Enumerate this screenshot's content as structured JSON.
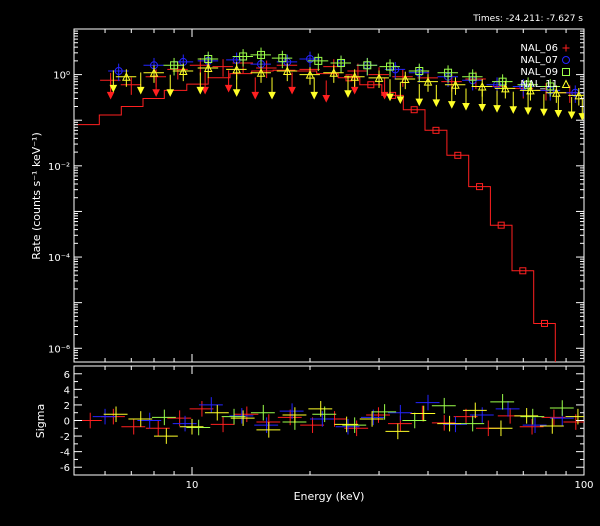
{
  "header": {
    "times_label": "Times: -24.211: -7.627 s"
  },
  "colors": {
    "NAL_06": "#ff2020",
    "NAL_07": "#2424ff",
    "NAL_09": "#9cff4a",
    "NAL_11": "#ffff28",
    "frame": "#ffffff",
    "background": "#000000"
  },
  "chart_data": [
    {
      "type": "scatter",
      "panel": "spectrum",
      "xlabel": "Energy (keV)",
      "ylabel": "Rate (counts s⁻¹ keV⁻¹)",
      "x_scale": "log",
      "y_scale": "log",
      "xlim": [
        5,
        100
      ],
      "ylim": [
        5e-07,
        10
      ],
      "x_ticks": [
        10,
        100
      ],
      "x_tick_labels": [
        "10",
        "100"
      ],
      "y_ticks": [
        1,
        0.01,
        0.0001,
        1e-06
      ],
      "y_tick_labels": [
        "10⁰",
        "10⁻²",
        "10⁻⁴",
        "10⁻⁶"
      ],
      "legend_position": "top-right",
      "series": [
        {
          "name": "NAL_06",
          "marker": "plus",
          "model_x": [
            5.1,
            5.8,
            6.6,
            7.5,
            8.5,
            9.7,
            11,
            12.5,
            14.2,
            16.1,
            18.3,
            20.8,
            23.6,
            26.8,
            30.5,
            34.6,
            39.3,
            44.7,
            50.8,
            57.7,
            65.5,
            74.4,
            84.5,
            96,
            100
          ],
          "model_y": [
            0.08,
            0.13,
            0.2,
            0.3,
            0.45,
            0.62,
            0.85,
            1.05,
            1.2,
            1.25,
            1.2,
            1.05,
            0.85,
            0.6,
            0.35,
            0.17,
            0.06,
            0.017,
            0.0035,
            0.0005,
            5e-05,
            3.5e-06,
            2e-07,
            8e-09,
            3e-09
          ],
          "data": [
            [
              6.2,
              0.75
            ],
            [
              7.0,
              0.6
            ],
            [
              8.1,
              0.9
            ],
            [
              9.2,
              1.3
            ],
            [
              10.5,
              1.6
            ],
            [
              12.0,
              1.5
            ],
            [
              13.5,
              1.8
            ],
            [
              15.5,
              1.4
            ],
            [
              17.5,
              1.6
            ],
            [
              20.0,
              1.3
            ],
            [
              23.0,
              1.5
            ],
            [
              26.5,
              1.2
            ],
            [
              30.0,
              1.0
            ],
            [
              34.5,
              0.9
            ],
            [
              40.0,
              0.85
            ],
            [
              46.0,
              0.7
            ],
            [
              53.0,
              0.8
            ],
            [
              60.0,
              0.55
            ],
            [
              70.0,
              0.5
            ],
            [
              80.0,
              0.45
            ],
            [
              92.0,
              0.4
            ]
          ],
          "upper_limits": [
            [
              6.2,
              0.35
            ],
            [
              8.1,
              0.4
            ],
            [
              10.8,
              0.45
            ],
            [
              12.4,
              0.5
            ],
            [
              14.5,
              0.35
            ],
            [
              18.0,
              0.45
            ],
            [
              22.0,
              0.3
            ],
            [
              26.0,
              0.45
            ],
            [
              31.0,
              0.35
            ]
          ]
        },
        {
          "name": "NAL_07",
          "marker": "circle",
          "data": [
            [
              6.5,
              1.2
            ],
            [
              8.0,
              1.6
            ],
            [
              9.5,
              1.9
            ],
            [
              11.0,
              2.0
            ],
            [
              13.0,
              2.1
            ],
            [
              15.0,
              1.7
            ],
            [
              17.5,
              1.9
            ],
            [
              20.0,
              2.2
            ],
            [
              24.0,
              1.8
            ],
            [
              28.0,
              1.6
            ],
            [
              33.0,
              1.3
            ],
            [
              38.0,
              1.1
            ],
            [
              45.0,
              0.9
            ],
            [
              52.0,
              0.75
            ],
            [
              60.0,
              0.6
            ],
            [
              70.0,
              0.55
            ],
            [
              82.0,
              0.45
            ],
            [
              95.0,
              0.4
            ]
          ]
        },
        {
          "name": "NAL_09",
          "marker": "square",
          "data": [
            [
              9.0,
              1.6
            ],
            [
              11.0,
              2.2
            ],
            [
              13.5,
              2.5
            ],
            [
              15.0,
              2.7
            ],
            [
              17.0,
              2.3
            ],
            [
              21.0,
              2.0
            ],
            [
              24.0,
              1.8
            ],
            [
              28.0,
              1.6
            ],
            [
              32.0,
              1.5
            ],
            [
              38.0,
              1.2
            ],
            [
              45.0,
              1.1
            ],
            [
              52.0,
              0.9
            ],
            [
              62.0,
              0.7
            ],
            [
              72.0,
              0.6
            ],
            [
              82.0,
              0.55
            ]
          ]
        },
        {
          "name": "NAL_11",
          "marker": "triangle",
          "data": [
            [
              6.8,
              0.9
            ],
            [
              8.0,
              1.1
            ],
            [
              9.5,
              1.2
            ],
            [
              11.0,
              1.4
            ],
            [
              13.0,
              1.3
            ],
            [
              15.0,
              1.1
            ],
            [
              17.5,
              1.2
            ],
            [
              20.0,
              1.0
            ],
            [
              23.0,
              1.1
            ],
            [
              26.0,
              0.9
            ],
            [
              30.0,
              0.85
            ],
            [
              35.0,
              0.8
            ],
            [
              40.0,
              0.7
            ],
            [
              47.0,
              0.6
            ],
            [
              55.0,
              0.55
            ],
            [
              63.0,
              0.5
            ],
            [
              73.0,
              0.45
            ],
            [
              85.0,
              0.4
            ],
            [
              97.0,
              0.35
            ]
          ],
          "upper_limits": [
            [
              6.3,
              0.5
            ],
            [
              7.4,
              0.45
            ],
            [
              8.8,
              0.4
            ],
            [
              10.5,
              0.45
            ],
            [
              13.0,
              0.4
            ],
            [
              16.0,
              0.35
            ],
            [
              20.5,
              0.35
            ],
            [
              25.0,
              0.38
            ],
            [
              32.0,
              0.32
            ],
            [
              34.0,
              0.28
            ],
            [
              38.0,
              0.25
            ],
            [
              42.0,
              0.24
            ],
            [
              46.0,
              0.22
            ],
            [
              50.0,
              0.2
            ],
            [
              55.0,
              0.19
            ],
            [
              60.0,
              0.18
            ],
            [
              66.0,
              0.17
            ],
            [
              72.0,
              0.16
            ],
            [
              79.0,
              0.15
            ],
            [
              86.0,
              0.14
            ],
            [
              93.0,
              0.13
            ],
            [
              99.0,
              0.12
            ]
          ]
        }
      ]
    },
    {
      "type": "scatter",
      "panel": "residuals",
      "xlabel": "Energy (keV)",
      "ylabel": "Sigma",
      "x_scale": "log",
      "xlim": [
        5,
        100
      ],
      "ylim": [
        -7,
        7
      ],
      "y_ticks": [
        -6,
        -4,
        -2,
        0,
        2,
        4,
        6
      ],
      "y_tick_labels": [
        "-6",
        "-4",
        "-2",
        "0",
        "2",
        "4",
        "6"
      ],
      "series": [
        {
          "name": "NAL_06",
          "data": [
            [
              5.5,
              0.0
            ],
            [
              6.3,
              0.5
            ],
            [
              7.1,
              -0.8
            ],
            [
              8.2,
              -1.0
            ],
            [
              9.3,
              0.3
            ],
            [
              10.6,
              1.5
            ],
            [
              12.0,
              -0.5
            ],
            [
              13.8,
              0.8
            ],
            [
              15.7,
              -0.2
            ],
            [
              17.8,
              0.4
            ],
            [
              20.3,
              -0.6
            ],
            [
              23.1,
              0.2
            ],
            [
              26.3,
              -1.0
            ],
            [
              29.9,
              0.7
            ],
            [
              34.0,
              -0.4
            ],
            [
              38.7,
              0.9
            ],
            [
              44.0,
              -0.3
            ],
            [
              50.0,
              0.5
            ],
            [
              57.0,
              -1.0
            ],
            [
              64.8,
              0.6
            ],
            [
              73.7,
              -0.8
            ],
            [
              83.8,
              0.4
            ],
            [
              95.3,
              -0.2
            ]
          ]
        },
        {
          "name": "NAL_07",
          "data": [
            [
              6.0,
              0.5
            ],
            [
              7.8,
              0.0
            ],
            [
              9.6,
              -0.4
            ],
            [
              11.2,
              2.0
            ],
            [
              13.4,
              0.6
            ],
            [
              15.5,
              -0.6
            ],
            [
              18.0,
              1.2
            ],
            [
              21.5,
              0.2
            ],
            [
              25.0,
              -0.8
            ],
            [
              29.0,
              0.4
            ],
            [
              34.0,
              1.0
            ],
            [
              40.0,
              2.3
            ],
            [
              47.0,
              -0.5
            ],
            [
              55.0,
              0.7
            ],
            [
              64.0,
              1.5
            ],
            [
              75.0,
              -0.6
            ],
            [
              88.0,
              0.3
            ]
          ]
        },
        {
          "name": "NAL_09",
          "data": [
            [
              8.5,
              0.4
            ],
            [
              10.4,
              -0.9
            ],
            [
              12.8,
              0.5
            ],
            [
              15.2,
              1.0
            ],
            [
              18.3,
              -0.2
            ],
            [
              21.8,
              0.8
            ],
            [
              26.0,
              -0.6
            ],
            [
              31.0,
              1.1
            ],
            [
              37.0,
              0.0
            ],
            [
              44.0,
              1.9
            ],
            [
              52.0,
              -0.4
            ],
            [
              62.0,
              2.4
            ],
            [
              74.0,
              0.5
            ],
            [
              88.0,
              1.6
            ]
          ]
        },
        {
          "name": "NAL_11",
          "data": [
            [
              6.4,
              0.8
            ],
            [
              7.4,
              0.2
            ],
            [
              8.6,
              -2.0
            ],
            [
              10.0,
              -0.8
            ],
            [
              11.6,
              1.0
            ],
            [
              13.5,
              0.3
            ],
            [
              15.7,
              -1.2
            ],
            [
              18.3,
              0.7
            ],
            [
              21.3,
              1.5
            ],
            [
              24.8,
              -0.5
            ],
            [
              28.8,
              0.2
            ],
            [
              33.5,
              -1.4
            ],
            [
              39.0,
              0.9
            ],
            [
              45.4,
              -0.4
            ],
            [
              52.8,
              1.3
            ],
            [
              61.4,
              -1.0
            ],
            [
              71.4,
              0.6
            ],
            [
              83.0,
              -0.7
            ],
            [
              96.5,
              0.5
            ]
          ]
        }
      ]
    }
  ]
}
